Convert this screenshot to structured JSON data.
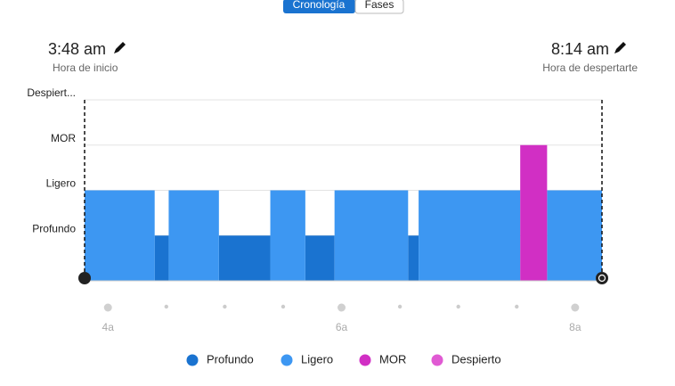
{
  "tabs": [
    "Cronología",
    "Fases"
  ],
  "start": {
    "time": "3:48 am",
    "label": "Hora de inicio"
  },
  "end": {
    "time": "8:14 am",
    "label": "Hora de despertarte"
  },
  "chart_data": {
    "type": "timeline",
    "xlim": [
      3.8,
      8.23
    ],
    "xticks": [
      {
        "value": 4,
        "label": "4a"
      },
      {
        "value": 6,
        "label": "6a"
      },
      {
        "value": 8,
        "label": "8a"
      }
    ],
    "xminorticks": [
      4.5,
      5,
      5.5,
      6.5,
      7,
      7.5
    ],
    "ylim": [
      0,
      4
    ],
    "yticks": [
      {
        "value": 1,
        "label": "Profundo"
      },
      {
        "value": 2,
        "label": "Ligero"
      },
      {
        "value": 3,
        "label": "MOR"
      },
      {
        "value": 4,
        "label": "Despiert..."
      }
    ],
    "grid": true,
    "series": [
      {
        "name": "Profundo",
        "color": "#1a73d0",
        "level": 1,
        "x": [
          [
            4.4,
            4.52
          ],
          [
            4.95,
            5.39
          ],
          [
            5.69,
            5.94
          ],
          [
            6.57,
            6.66
          ]
        ]
      },
      {
        "name": "Ligero",
        "color": "#3d97f2",
        "level": 2,
        "x": [
          [
            3.8,
            4.4
          ],
          [
            4.52,
            4.95
          ],
          [
            5.39,
            5.69
          ],
          [
            5.94,
            6.57
          ],
          [
            6.66,
            7.53
          ],
          [
            7.76,
            8.23
          ]
        ]
      },
      {
        "name": "MOR",
        "color": "#d12fc4",
        "level": 3,
        "x": [
          [
            7.53,
            7.76
          ]
        ]
      },
      {
        "name": "Despierto",
        "color": "#e05ad3",
        "level": 4,
        "x": []
      }
    ]
  }
}
